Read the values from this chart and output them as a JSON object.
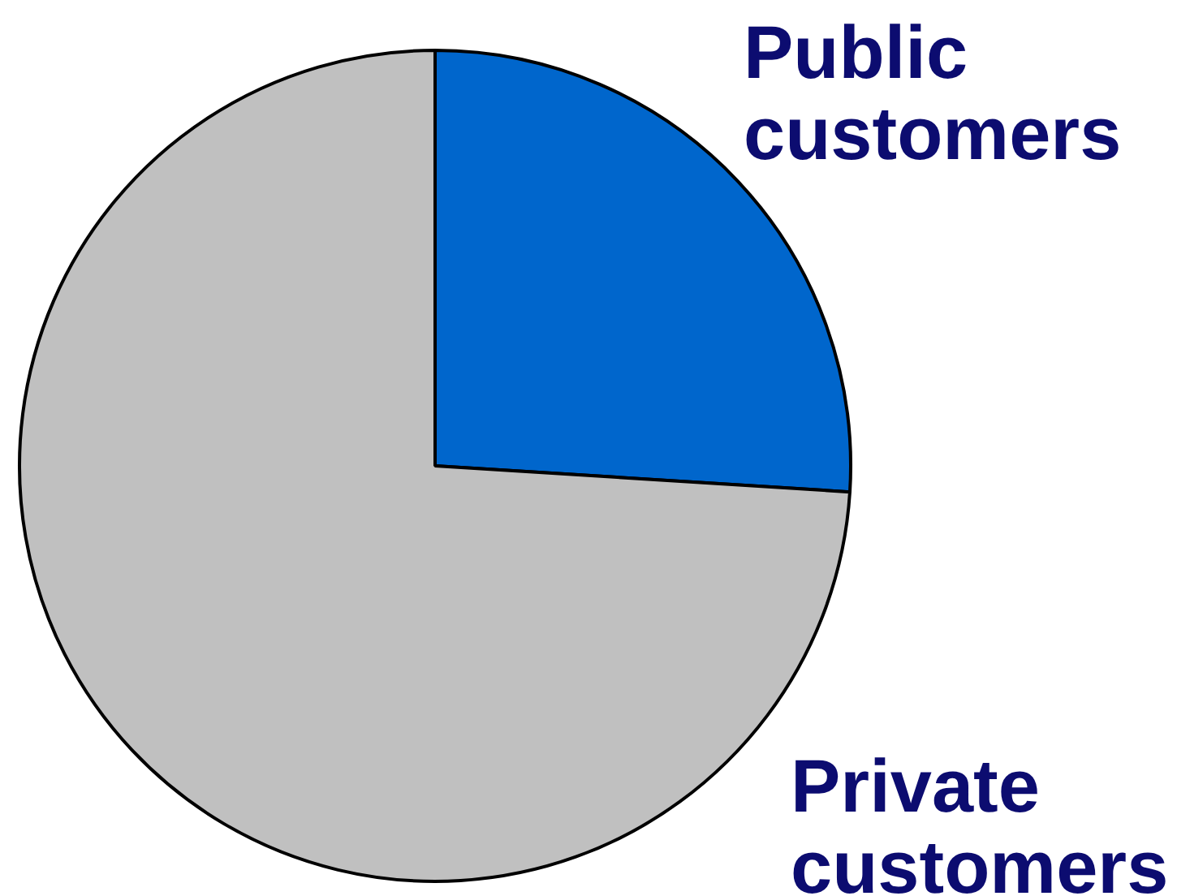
{
  "chart_data": {
    "type": "pie",
    "categories": [
      "Public customers",
      "Private customers"
    ],
    "values": [
      26,
      74
    ],
    "colors": [
      "#0066cc",
      "#c0c0c0"
    ],
    "legend": false
  }
}
